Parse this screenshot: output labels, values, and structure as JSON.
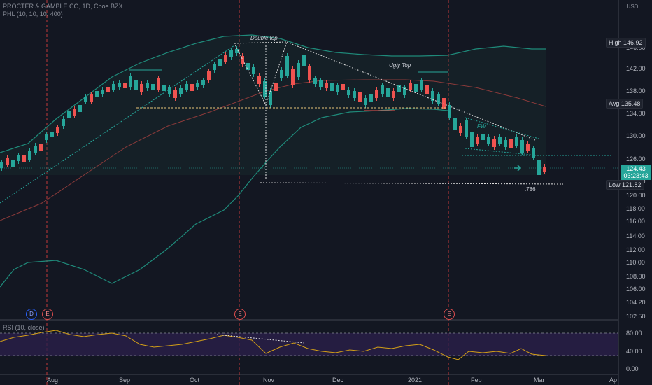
{
  "header": {
    "symbol_title": "PROCTER & GAMBLE CO, 1D, Cboe BZX",
    "indicator_label": "PHL (10, 10, 10, 400)",
    "currency": "USD"
  },
  "rsi": {
    "label": "RSI (10, close)",
    "levels": [
      "80.00",
      "40.00",
      "0.00"
    ]
  },
  "price_axis": {
    "ticks": [
      "146.00",
      "142.00",
      "138.00",
      "134.00",
      "130.00",
      "126.00",
      "122.00",
      "120.00",
      "118.00",
      "116.00",
      "114.00",
      "112.00",
      "110.00",
      "108.00",
      "106.00",
      "104.20",
      "102.50"
    ]
  },
  "time_axis": {
    "ticks": [
      "Aug",
      "Sep",
      "Oct",
      "Nov",
      "Dec",
      "2021",
      "Feb",
      "Mar",
      "Ap"
    ]
  },
  "price_tags": {
    "high_label": "High",
    "high_value": "146.92",
    "avg_label": "Avg",
    "avg_value": "135.48",
    "low_label": "Low",
    "low_value": "121.82",
    "last_price": "124.43",
    "countdown": "03:23:43"
  },
  "annotations": {
    "double_top": "Double top",
    "ugly_top": "Ugly Top",
    "fw": "FW",
    "fib": ".786"
  },
  "events": [
    {
      "type": "D",
      "label": "D"
    },
    {
      "type": "E",
      "label": "E"
    },
    {
      "type": "E",
      "label": "E"
    },
    {
      "type": "E",
      "label": "E"
    }
  ],
  "colors": {
    "background": "#131722",
    "up": "#26a69a",
    "down": "#ef5350",
    "band": "#1f8a7a",
    "rsi_line": "#d4a017",
    "rsi_fill": "#2a1f4a",
    "accent": "#26a69a"
  }
}
